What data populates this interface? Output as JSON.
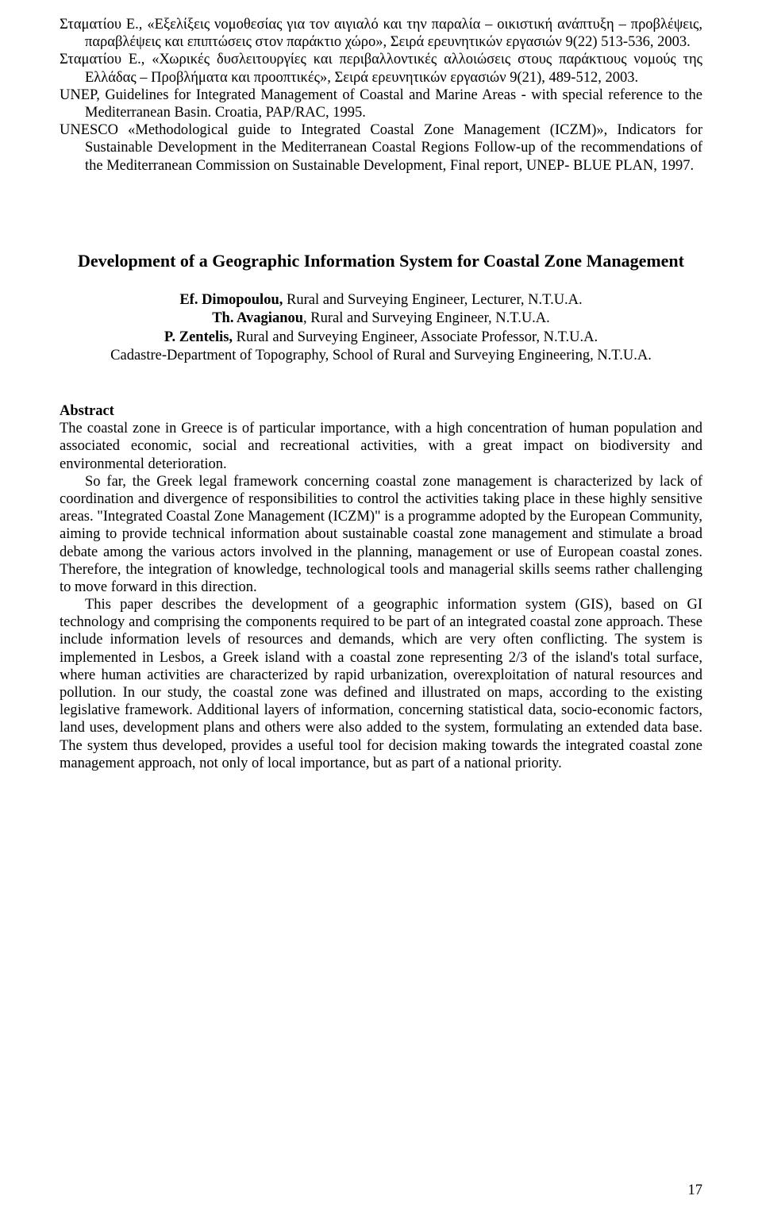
{
  "references": [
    "Σταματίου Ε., «Εξελίξεις νομοθεσίας για τον αιγιαλό και την παραλία – οικιστική ανάπτυξη – προβλέψεις, παραβλέψεις και επιπτώσεις στον παράκτιο χώρο», Σειρά ερευνητικών εργασιών 9(22) 513-536, 2003.",
    "Σταματίου Ε., «Χωρικές δυσλειτουργίες και περιβαλλοντικές αλλοιώσεις στους παράκτιους νομούς της Ελλάδας – Προβλήματα και προοπτικές», Σειρά ερευνητικών εργασιών 9(21), 489-512, 2003.",
    "UNEP, Guidelines for Integrated Management of Coastal and Marine Areas - with special reference to the Mediterranean Basin. Croatia, PAP/RAC, 1995.",
    "UNESCO «Methodological guide to Integrated Coastal Zone Management (ICZM)», Indicators for Sustainable Development in the Mediterranean Coastal Regions Follow-up of the recommendations of the Mediterranean Commission on Sustainable Development, Final report, UNEP- BLUE PLAN, 1997."
  ],
  "title": "Development of a Geographic Information System for Coastal Zone Management",
  "authors": [
    {
      "name": "Ef. Dimopoulou,",
      "role": " Rural and Surveying Engineer, Lecturer, N.T.U.A."
    },
    {
      "name": "Th. Avagianou",
      "role": ", Rural and Surveying Engineer, N.T.U.A."
    },
    {
      "name": "P. Zentelis,",
      "role": " Rural and Surveying Engineer, Associate Professor, N.T.U.A."
    }
  ],
  "affiliation": "Cadastre-Department of Topography, School of Rural and Surveying Engineering, N.T.U.A.",
  "abstract_heading": "Abstract",
  "abstract_paragraphs": [
    "The coastal zone in Greece is of particular importance, with a high concentration of human population and associated economic, social and recreational activities, with a great impact on biodiversity and environmental deterioration.",
    "So far, the Greek legal framework concerning coastal zone management is characterized by lack of coordination and divergence of responsibilities to control the activities taking place in these highly sensitive areas. \"Integrated Coastal Zone Management (ICZM)\" is a programme adopted by the European Community, aiming to provide technical information about sustainable coastal zone management and stimulate a broad debate among the various actors involved in the planning, management or use of European coastal zones. Therefore, the integration of knowledge, technological tools and managerial skills seems rather challenging to move forward in this direction.",
    "This paper describes the development of a geographic information system (GIS), based on GI technology and comprising the components required to be part of an integrated coastal zone approach. These include information levels of resources and demands, which are very often conflicting. The system is implemented in Lesbos, a Greek island with a coastal zone representing 2/3 of the island's total surface, where human activities are characterized by rapid urbanization, overexploitation of natural resources and pollution. In our study, the coastal zone was defined and illustrated on maps, according to the existing legislative framework. Additional layers of information, concerning statistical data, socio-economic factors, land uses, development plans and others were also added to the system, formulating an extended data base. The system thus developed, provides a useful tool for decision making towards the integrated coastal zone management approach, not only of local importance, but as part of a national priority."
  ],
  "page_number": "17"
}
